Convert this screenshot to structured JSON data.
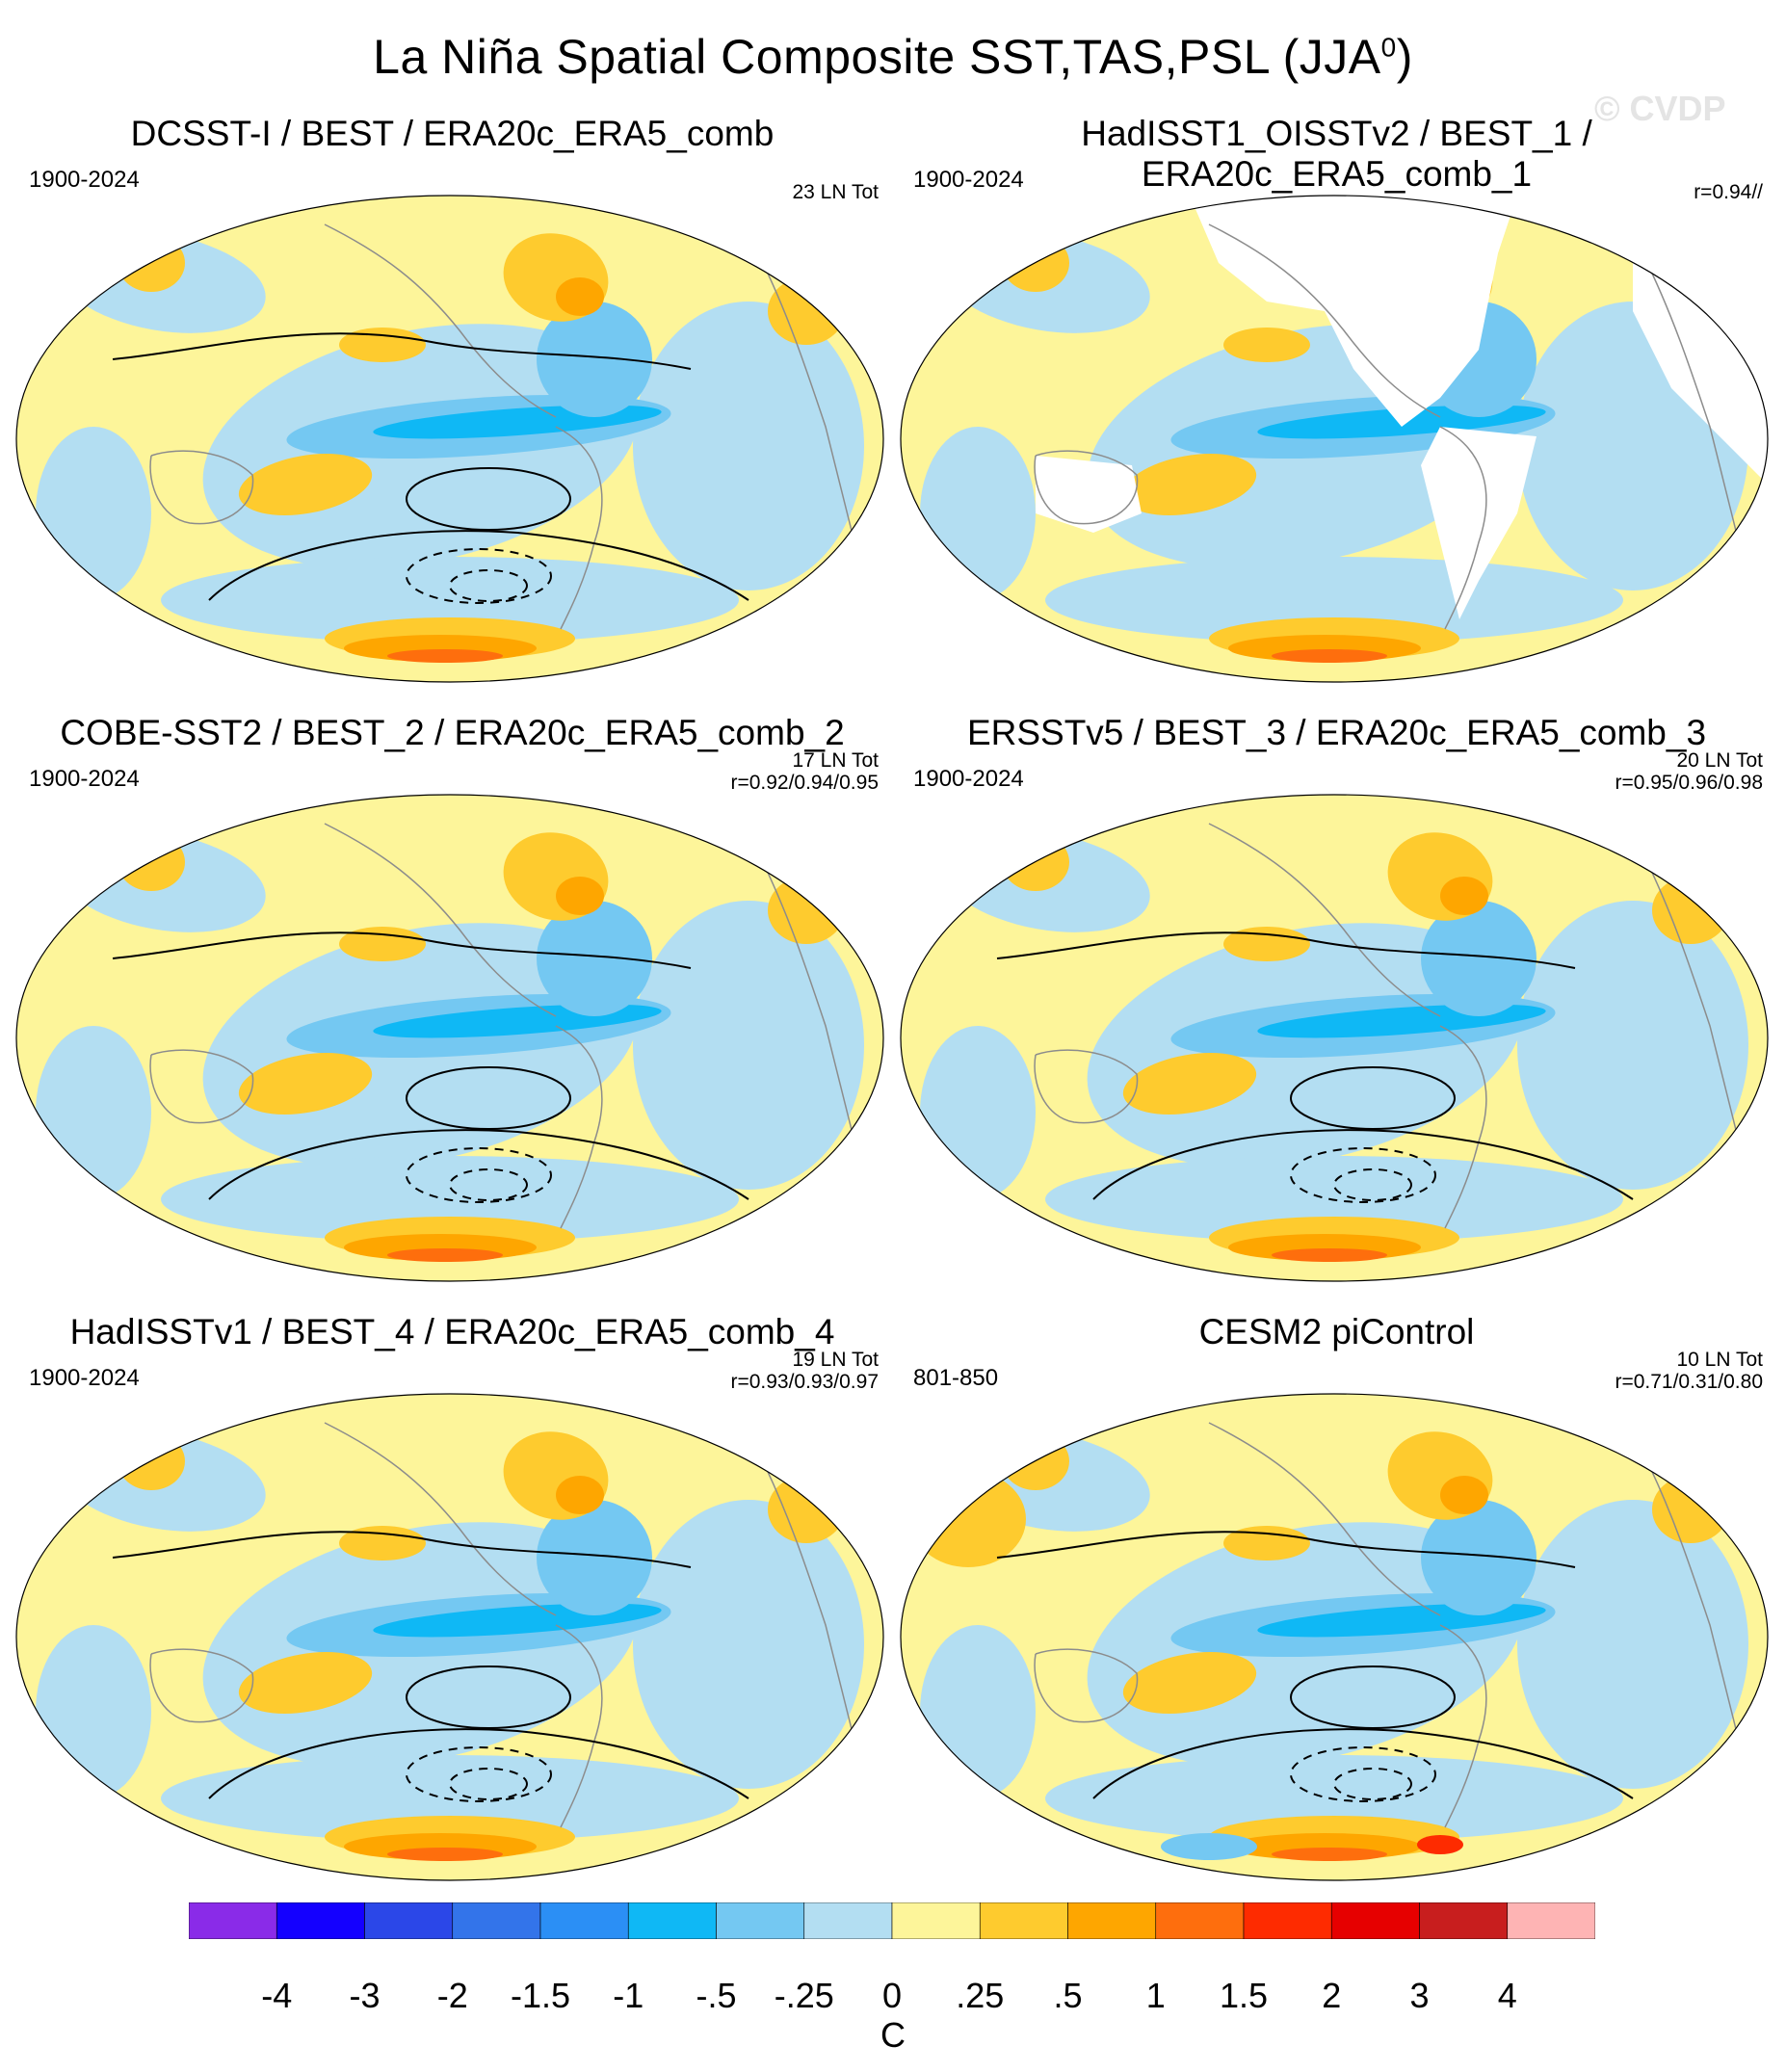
{
  "title": "La Niña Spatial Composite SST,TAS,PSL (JJA",
  "title_superscript": "0",
  "title_suffix": ")",
  "watermark": "© CVDP",
  "colors": {
    "neutral_pos": "#fdf59a",
    "neutral_neg": "#b3def2",
    "land_missing": "#ffffff",
    "contour": "#000000",
    "coast": "#8c8c8c"
  },
  "panels": [
    {
      "title": "DCSST-I / BEST / ERA20c_ERA5_comb",
      "years": "1900-2024",
      "count": "23 LN Tot",
      "corr": ""
    },
    {
      "title": "HadISST1_OISSTv2 / BEST_1 / ERA20c_ERA5_comb_1",
      "years": "1900-2024",
      "count": "",
      "corr": "r=0.94//"
    },
    {
      "title": "COBE-SST2 / BEST_2 / ERA20c_ERA5_comb_2",
      "years": "1900-2024",
      "count": "17 LN Tot",
      "corr": "r=0.92/0.94/0.95"
    },
    {
      "title": "ERSSTv5 / BEST_3 / ERA20c_ERA5_comb_3",
      "years": "1900-2024",
      "count": "20 LN Tot",
      "corr": "r=0.95/0.96/0.98"
    },
    {
      "title": "HadISSTv1 / BEST_4 / ERA20c_ERA5_comb_4",
      "years": "1900-2024",
      "count": "19 LN Tot",
      "corr": "r=0.93/0.93/0.97"
    },
    {
      "title": "CESM2 piControl",
      "years": "801-850",
      "count": "10 LN Tot",
      "corr": "r=0.71/0.31/0.80"
    }
  ],
  "colorbar": {
    "colors": [
      "#8a2be8",
      "#1400ff",
      "#2b47e8",
      "#3374ea",
      "#2b8ff5",
      "#0fb8f5",
      "#74c8f2",
      "#b3def2",
      "#fdf59a",
      "#fecb2e",
      "#fea600",
      "#fe6e0d",
      "#fe2b00",
      "#e60000",
      "#c81e1e",
      "#feb4b4"
    ],
    "labels": [
      "-4",
      "-3",
      "-2",
      "-1.5",
      "-1",
      "-.5",
      "-.25",
      "0",
      ".25",
      ".5",
      "1",
      "1.5",
      "2",
      "3",
      "4"
    ],
    "unit": "C"
  }
}
